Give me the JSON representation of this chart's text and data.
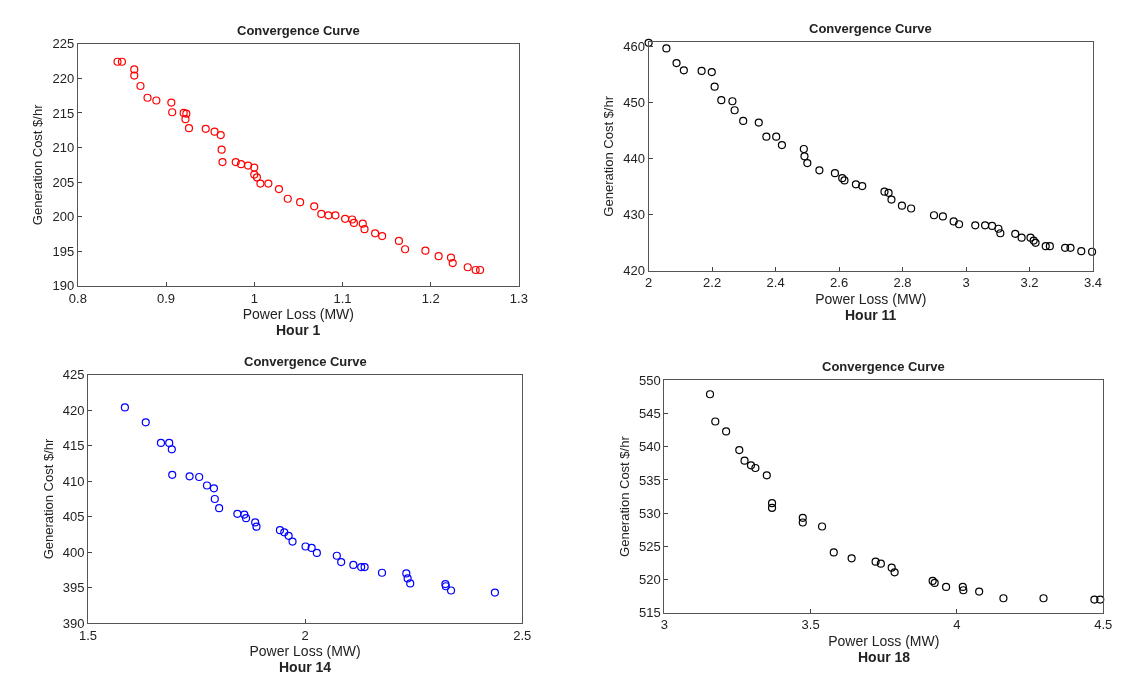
{
  "chart_data": [
    {
      "type": "scatter",
      "title": "Convergence Curve",
      "xlabel": "Power Loss (MW)",
      "ylabel": "Generation Cost $/hr",
      "annotations": [
        "Hour 1"
      ],
      "marker": "circle",
      "grid": false,
      "xlim": [
        0.8,
        1.3
      ],
      "xticks": [
        0.8,
        0.9,
        1,
        1.1,
        1.2,
        1.3
      ],
      "ylim": [
        190,
        225
      ],
      "yticks": [
        190,
        195,
        200,
        205,
        210,
        215,
        220,
        225
      ],
      "series": [
        {
          "color": "#ff0000",
          "x": [
            0.845,
            0.85,
            0.864,
            0.864,
            0.871,
            0.879,
            0.889,
            0.906,
            0.907,
            0.92,
            0.923,
            0.922,
            0.926,
            0.945,
            0.955,
            0.962,
            0.963,
            0.964,
            0.979,
            0.985,
            0.993,
            1.0,
            1.0,
            1.003,
            1.007,
            1.016,
            1.028,
            1.038,
            1.052,
            1.068,
            1.076,
            1.084,
            1.092,
            1.103,
            1.111,
            1.113,
            1.123,
            1.125,
            1.137,
            1.145,
            1.164,
            1.171,
            1.194,
            1.209,
            1.223,
            1.225,
            1.242,
            1.251,
            1.256
          ],
          "values": [
            222.4,
            222.4,
            221.3,
            220.4,
            218.9,
            217.2,
            216.8,
            216.5,
            215.1,
            215.0,
            214.9,
            214.1,
            212.8,
            212.7,
            212.3,
            211.8,
            209.7,
            207.9,
            207.9,
            207.6,
            207.4,
            207.1,
            206.1,
            205.7,
            204.8,
            204.8,
            204.0,
            202.6,
            202.1,
            201.5,
            200.4,
            200.2,
            200.2,
            199.7,
            199.6,
            199.1,
            199.0,
            198.2,
            197.6,
            197.2,
            196.5,
            195.3,
            195.1,
            194.3,
            194.1,
            193.3,
            192.7,
            192.3,
            192.3
          ]
        }
      ]
    },
    {
      "type": "scatter",
      "title": "Convergence Curve",
      "xlabel": "Power Loss (MW)",
      "ylabel": "Generation Cost $/hr",
      "annotations": [
        "Hour 11"
      ],
      "marker": "circle",
      "grid": false,
      "xlim": [
        2,
        3.4
      ],
      "xticks": [
        2,
        2.2,
        2.4,
        2.6,
        2.8,
        3,
        3.2,
        3.4
      ],
      "ylim": [
        420,
        460.8
      ],
      "yticks": [
        420,
        430,
        440,
        450,
        460
      ],
      "series": [
        {
          "color": "#000000",
          "x": [
            2.0,
            2.056,
            2.088,
            2.111,
            2.167,
            2.199,
            2.208,
            2.229,
            2.264,
            2.271,
            2.298,
            2.347,
            2.371,
            2.402,
            2.42,
            2.489,
            2.491,
            2.5,
            2.538,
            2.587,
            2.61,
            2.617,
            2.653,
            2.673,
            2.743,
            2.756,
            2.765,
            2.798,
            2.827,
            2.899,
            2.927,
            2.961,
            2.978,
            3.029,
            3.06,
            3.082,
            3.102,
            3.108,
            3.155,
            3.175,
            3.203,
            3.213,
            3.219,
            3.251,
            3.264,
            3.312,
            3.329,
            3.363,
            3.397
          ],
          "values": [
            460.6,
            459.6,
            457.0,
            455.7,
            455.6,
            455.4,
            452.8,
            450.4,
            450.2,
            448.6,
            446.7,
            446.4,
            443.9,
            443.9,
            442.4,
            441.7,
            440.4,
            439.2,
            437.9,
            437.4,
            436.5,
            436.1,
            435.4,
            435.1,
            434.1,
            433.9,
            432.7,
            431.6,
            431.1,
            429.9,
            429.7,
            428.8,
            428.3,
            428.1,
            428.1,
            428.0,
            427.5,
            426.7,
            426.6,
            425.9,
            425.9,
            425.4,
            425.0,
            424.4,
            424.4,
            424.1,
            424.1,
            423.5,
            423.4
          ]
        }
      ]
    },
    {
      "type": "scatter",
      "title": "Convergence Curve",
      "xlabel": "Power Loss (MW)",
      "ylabel": "Generation Cost $/hr",
      "annotations": [
        "Hour 14"
      ],
      "marker": "circle",
      "grid": false,
      "xlim": [
        1.5,
        2.5
      ],
      "xticks": [
        1.5,
        2,
        2.5
      ],
      "ylim": [
        390,
        425
      ],
      "yticks": [
        390,
        395,
        400,
        405,
        410,
        415,
        420,
        425
      ],
      "series": [
        {
          "color": "#0000ff",
          "x": [
            1.585,
            1.633,
            1.668,
            1.687,
            1.693,
            1.694,
            1.734,
            1.756,
            1.774,
            1.79,
            1.792,
            1.802,
            1.844,
            1.86,
            1.864,
            1.885,
            1.888,
            1.942,
            1.952,
            1.962,
            1.971,
            2.001,
            2.015,
            2.027,
            2.073,
            2.083,
            2.111,
            2.129,
            2.137,
            2.177,
            2.233,
            2.236,
            2.242,
            2.323,
            2.324,
            2.336,
            2.437
          ],
          "values": [
            420.4,
            418.3,
            415.4,
            415.4,
            414.5,
            410.9,
            410.7,
            410.6,
            409.4,
            409.0,
            407.5,
            406.2,
            405.4,
            405.3,
            404.8,
            404.2,
            403.6,
            403.1,
            402.8,
            402.3,
            401.5,
            400.8,
            400.6,
            399.9,
            399.5,
            398.6,
            398.2,
            397.9,
            397.9,
            397.1,
            397.0,
            396.3,
            395.6,
            395.5,
            395.2,
            394.6,
            394.3
          ]
        }
      ]
    },
    {
      "type": "scatter",
      "title": "Convergence Curve",
      "xlabel": "Power Loss (MW)",
      "ylabel": "Generation Cost $/hr",
      "annotations": [
        "Hour 18"
      ],
      "marker": "circle",
      "grid": false,
      "xlim": [
        3,
        4.5
      ],
      "xticks": [
        3,
        3.5,
        4,
        4.5
      ],
      "ylim": [
        515,
        550
      ],
      "yticks": [
        515,
        520,
        525,
        530,
        535,
        540,
        545,
        550
      ],
      "series": [
        {
          "color": "#000000",
          "x": [
            3.156,
            3.174,
            3.211,
            3.256,
            3.274,
            3.296,
            3.311,
            3.35,
            3.368,
            3.368,
            3.473,
            3.473,
            3.539,
            3.579,
            3.64,
            3.722,
            3.74,
            3.777,
            3.787,
            3.917,
            3.924,
            3.963,
            4.02,
            4.022,
            4.076,
            4.159,
            4.296,
            4.47,
            4.49
          ],
          "values": [
            547.9,
            543.8,
            542.3,
            539.5,
            537.9,
            537.2,
            536.8,
            535.7,
            531.5,
            530.8,
            529.3,
            528.6,
            528.0,
            524.1,
            523.2,
            522.7,
            522.4,
            521.8,
            521.1,
            519.8,
            519.5,
            518.9,
            518.9,
            518.4,
            518.2,
            517.2,
            517.2,
            517.0,
            517.0
          ]
        }
      ]
    }
  ]
}
